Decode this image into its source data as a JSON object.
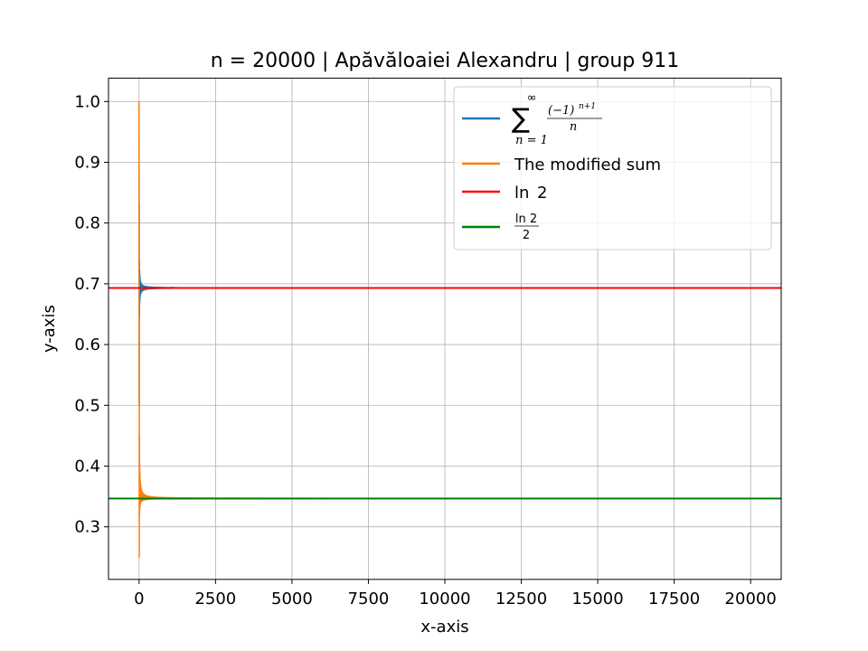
{
  "chart_data": {
    "type": "line",
    "title": "n = 20000 | Apăvăloaiei Alexandru | group 911",
    "xlabel": "x-axis",
    "ylabel": "y-axis",
    "xlim": [
      -1000,
      21000
    ],
    "ylim": [
      0.2135,
      1.0385
    ],
    "xticks": [
      0,
      2500,
      5000,
      7500,
      10000,
      12500,
      15000,
      17500,
      20000
    ],
    "yticks": [
      0.3,
      0.4,
      0.5,
      0.6,
      0.7,
      0.8,
      0.9,
      1.0
    ],
    "xtick_labels": [
      "0",
      "2500",
      "5000",
      "7500",
      "10000",
      "12500",
      "15000",
      "17500",
      "20000"
    ],
    "ytick_labels": [
      "0.3",
      "0.4",
      "0.5",
      "0.6",
      "0.7",
      "0.8",
      "0.9",
      "1.0"
    ],
    "grid": true,
    "legend_position": "upper-right",
    "series": [
      {
        "name": "∑ (−1)^(n+1)/n, n = 1 to ∞",
        "name_parts": {
          "sum": "∑",
          "upper": "∞",
          "lower": "n = 1",
          "numerator": "(−1)",
          "exponent": "n+1",
          "denominator": "n"
        },
        "color": "#1f77b4",
        "kind": "alternating_harmonic",
        "n_max": 20000
      },
      {
        "name": "The modified sum",
        "color": "#ff7f0e",
        "kind": "modified_sum",
        "n_max": 20000
      },
      {
        "name": "ln 2",
        "name_parts": {
          "fn": "ln",
          "arg": "2"
        },
        "color": "#ff0000",
        "kind": "hline",
        "y": 0.6931
      },
      {
        "name": "ln 2 / 2",
        "name_parts": {
          "numerator": "ln 2",
          "denominator": "2"
        },
        "color": "#008000",
        "kind": "hline",
        "y": 0.3466
      }
    ]
  }
}
